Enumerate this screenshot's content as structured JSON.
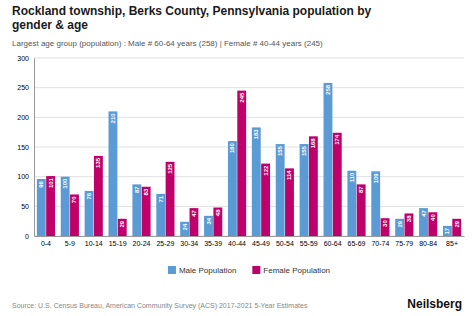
{
  "chart_data": {
    "type": "bar",
    "title": "Rockland township, Berks County, Pennsylvania population by\ngender & age",
    "subtitle": "Largest age group (population) : Male # 60-64 years (258) | Female # 40-44 years (245)",
    "annotations": [
      "Source: U.S. Census Bureau, American Community Survey (ACS) 2017-2021 5-Year Estimates",
      "Neilsberg"
    ],
    "categories": [
      "0-4",
      "5-9",
      "10-14",
      "15-19",
      "20-24",
      "25-29",
      "30-34",
      "35-39",
      "40-44",
      "45-49",
      "50-54",
      "55-59",
      "60-64",
      "65-69",
      "70-74",
      "75-79",
      "80-84",
      "85+"
    ],
    "series": [
      {
        "name": "Male Population",
        "color": "#5b9bd5",
        "values": [
          96,
          100,
          76,
          210,
          87,
          71,
          24,
          34,
          160,
          183,
          155,
          155,
          258,
          110,
          109,
          29,
          47,
          17
        ]
      },
      {
        "name": "Female Population",
        "color": "#c0006a",
        "values": [
          101,
          70,
          135,
          29,
          83,
          125,
          47,
          48,
          245,
          122,
          114,
          168,
          174,
          87,
          30,
          38,
          40,
          29
        ]
      }
    ],
    "ylim": [
      0,
      300
    ],
    "yticks": [
      0,
      50,
      100,
      150,
      200,
      250,
      300
    ],
    "grid": true,
    "legend": "bottom",
    "data_labels": true
  }
}
